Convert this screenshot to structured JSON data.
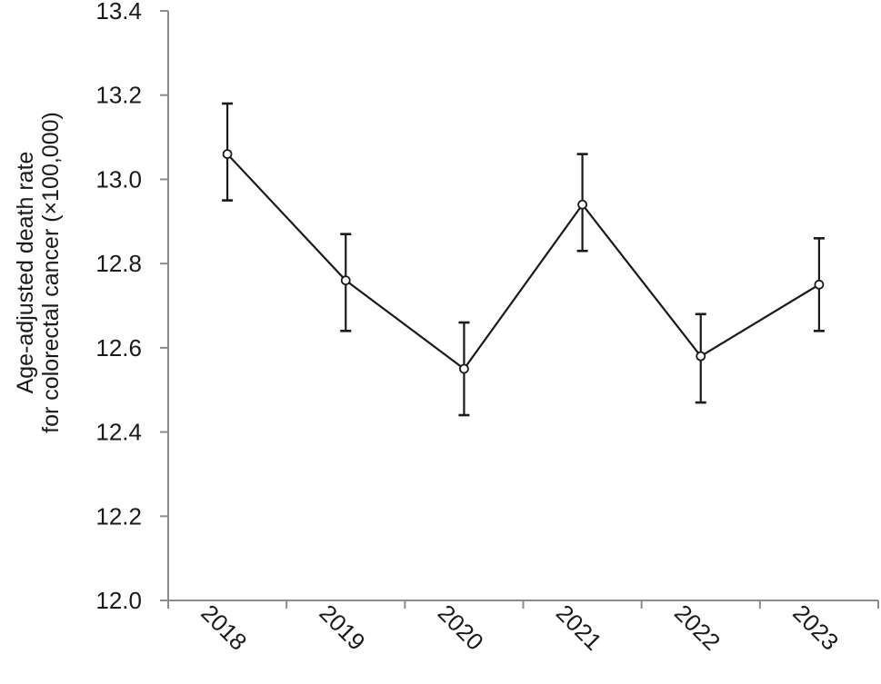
{
  "chart_data": {
    "type": "line",
    "ylabel_lines": [
      "Age-adjusted death rate",
      "for colorectal cancer (×100,000)"
    ],
    "xlabel": "",
    "categories": [
      "2018",
      "2019",
      "2020",
      "2021",
      "2022",
      "2023"
    ],
    "series": [
      {
        "values": [
          13.06,
          12.76,
          12.55,
          12.94,
          12.58,
          12.75
        ],
        "error_lower": [
          12.95,
          12.64,
          12.44,
          12.83,
          12.47,
          12.64
        ],
        "error_upper": [
          13.18,
          12.87,
          12.66,
          13.06,
          12.68,
          12.86
        ],
        "color": "#1a1a1a",
        "marker": "open-circle"
      }
    ],
    "yticks": [
      "12.0",
      "12.2",
      "12.4",
      "12.6",
      "12.8",
      "13.0",
      "13.2",
      "13.4"
    ],
    "ylim": [
      12.0,
      13.4
    ],
    "grid": false,
    "legend": "none"
  }
}
